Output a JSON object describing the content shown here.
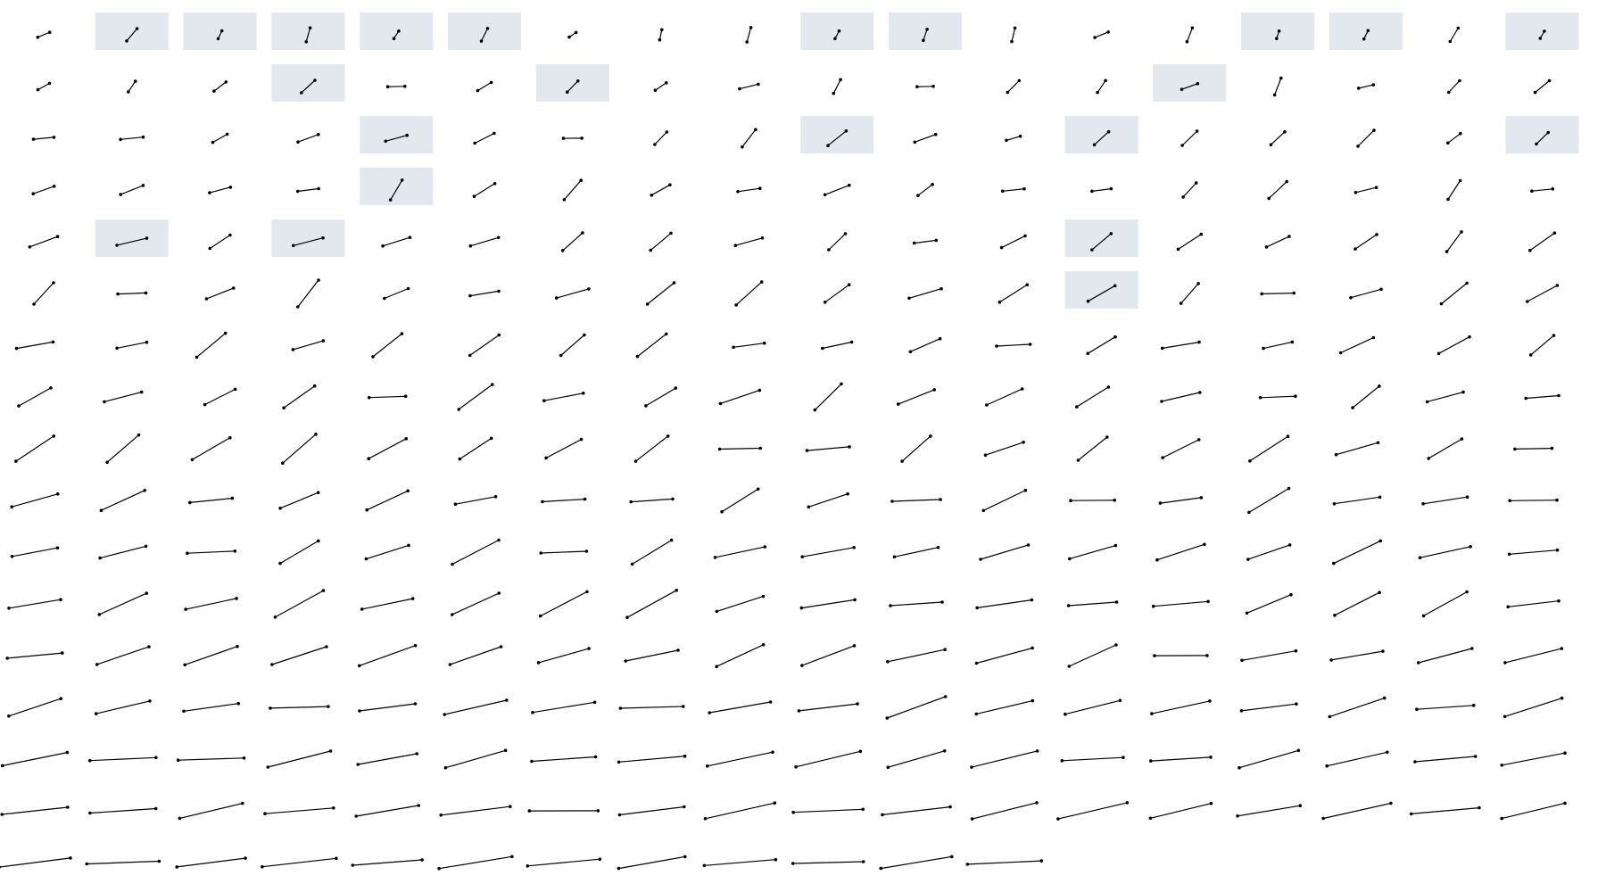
{
  "highlight_color": "#e3e8ef",
  "stroke_color": "#000000",
  "grid": {
    "columns": 18,
    "rows": 17,
    "item_count": 300
  },
  "highlighted_items": [
    1,
    2,
    3,
    4,
    5,
    9,
    10,
    14,
    15,
    17,
    21,
    24,
    31,
    40,
    45,
    48,
    53,
    58,
    73,
    75,
    84,
    102
  ]
}
